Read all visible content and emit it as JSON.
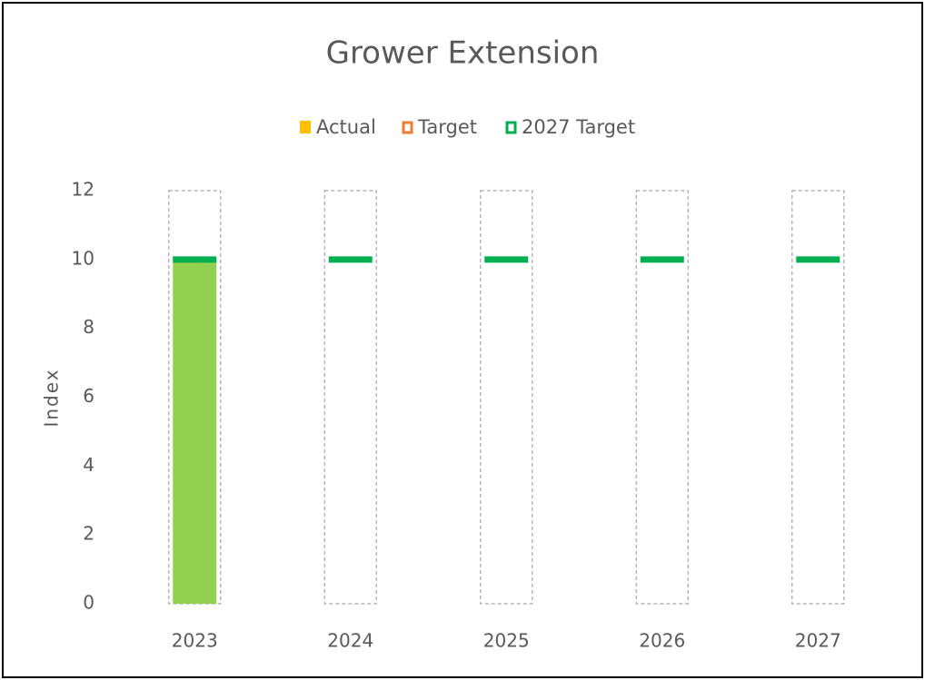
{
  "chart_data": {
    "type": "bar",
    "title": "Grower Extension",
    "y_label": "Index",
    "categories": [
      "2023",
      "2024",
      "2025",
      "2026",
      "2027"
    ],
    "series": [
      {
        "name": "Actual",
        "color": "#ffc000",
        "point_colors": [
          "#92d050",
          null,
          null,
          null,
          null
        ],
        "values": [
          10,
          null,
          null,
          null,
          null
        ]
      },
      {
        "name": "Target",
        "color": "#ed7d31",
        "outline_color": "#a6a6a6",
        "values": [
          12,
          12,
          12,
          12,
          12
        ]
      },
      {
        "name": "2027 Target",
        "color": "#00b050",
        "values": [
          10,
          10,
          10,
          10,
          10
        ]
      }
    ],
    "ylim": [
      0,
      12
    ],
    "yticks": [
      0,
      2,
      4,
      6,
      8,
      10,
      12
    ],
    "grid": false,
    "legend": "top"
  }
}
